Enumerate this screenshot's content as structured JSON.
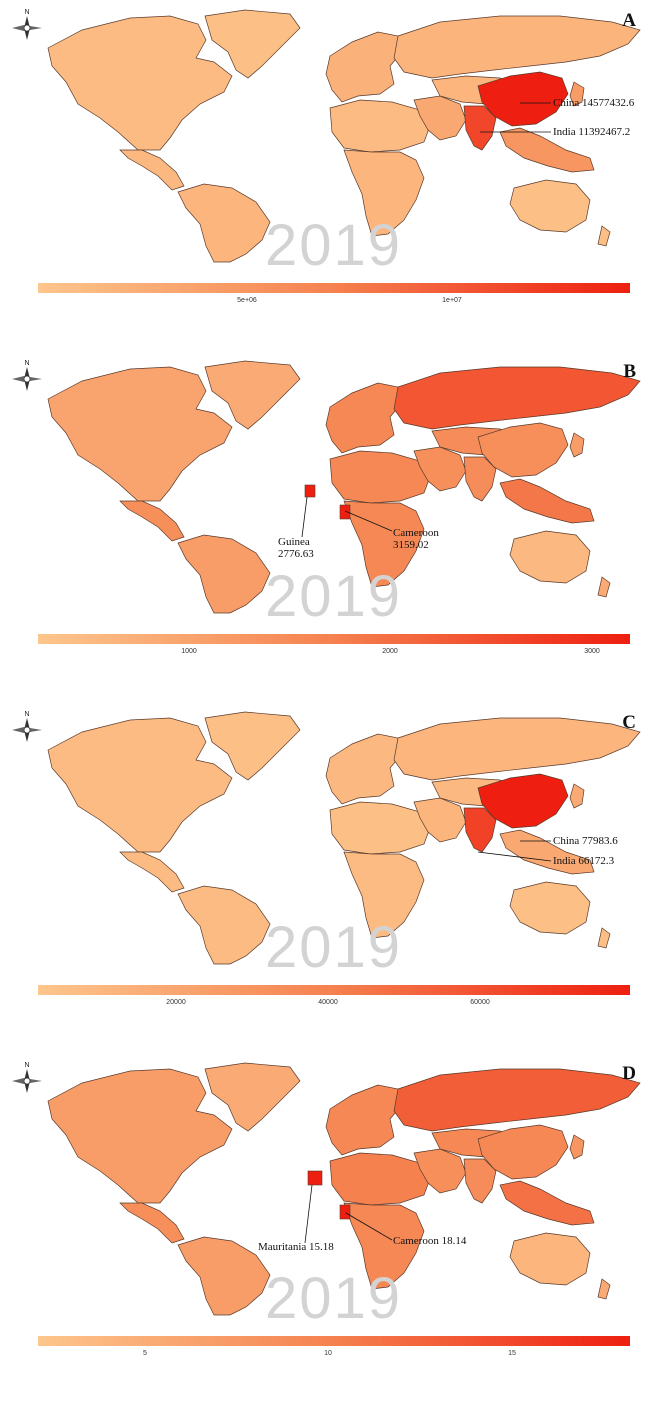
{
  "year_label": "2019",
  "colors": {
    "low": "#fdc68c",
    "mid": "#f5814f",
    "high": "#ee1f10",
    "border": "#5a3a2a"
  },
  "panels": [
    {
      "letter": "A",
      "ticks": [
        {
          "value": "5e+06",
          "pos": 0.354
        },
        {
          "value": "1e+07",
          "pos": 0.7
        }
      ],
      "annotations": [
        {
          "country": "China",
          "value": "14577432.6",
          "text": "China 14577432.6"
        },
        {
          "country": "India",
          "value": "11392467.2",
          "text": "India 11392467.2"
        }
      ],
      "region_levels": {
        "na": 0.08,
        "ca": 0.1,
        "sa": 0.12,
        "gl": 0.05,
        "eu": 0.15,
        "ru": 0.13,
        "naf": 0.08,
        "saf": 0.12,
        "me": 0.22,
        "ca_asia": 0.12,
        "china": 1.0,
        "india": 0.8,
        "sea": 0.35,
        "jp": 0.3,
        "au": 0.05,
        "nz": 0.05
      }
    },
    {
      "letter": "B",
      "ticks": [
        {
          "value": "1000",
          "pos": 0.255
        },
        {
          "value": "2000",
          "pos": 0.595
        },
        {
          "value": "3000",
          "pos": 0.935
        }
      ],
      "annotations": [
        {
          "country": "Guinea",
          "value": "2776.63",
          "text": "Guinea 2776.63"
        },
        {
          "country": "Cameroon",
          "value": "3159.02",
          "text": "Cameroon 3159.02"
        }
      ],
      "region_levels": {
        "na": 0.25,
        "ca": 0.4,
        "sa": 0.3,
        "gl": 0.2,
        "eu": 0.45,
        "ru": 0.72,
        "naf": 0.45,
        "saf": 0.45,
        "me": 0.4,
        "ca_asia": 0.42,
        "china": 0.4,
        "india": 0.42,
        "sea": 0.55,
        "jp": 0.3,
        "au": 0.1,
        "nz": 0.2
      }
    },
    {
      "letter": "C",
      "ticks": [
        {
          "value": "20000",
          "pos": 0.233
        },
        {
          "value": "40000",
          "pos": 0.49
        },
        {
          "value": "60000",
          "pos": 0.746
        }
      ],
      "annotations": [
        {
          "country": "China",
          "value": "77983.6",
          "text": "China 77983.6"
        },
        {
          "country": "India",
          "value": "66172.3",
          "text": "India 66172.3"
        }
      ],
      "region_levels": {
        "na": 0.08,
        "ca": 0.08,
        "sa": 0.08,
        "gl": 0.05,
        "eu": 0.1,
        "ru": 0.12,
        "naf": 0.05,
        "saf": 0.08,
        "me": 0.12,
        "ca_asia": 0.1,
        "china": 1.0,
        "india": 0.82,
        "sea": 0.22,
        "jp": 0.2,
        "au": 0.04,
        "nz": 0.04
      }
    },
    {
      "letter": "D",
      "ticks": [
        {
          "value": "5",
          "pos": 0.18
        },
        {
          "value": "10",
          "pos": 0.49
        },
        {
          "value": "15",
          "pos": 0.8
        }
      ],
      "annotations": [
        {
          "country": "Mauritania",
          "value": "15.18",
          "text": "Mauritania 15.18"
        },
        {
          "country": "Cameroon",
          "value": "18.14",
          "text": "Cameroon 18.14"
        }
      ],
      "region_levels": {
        "na": 0.3,
        "ca": 0.4,
        "sa": 0.3,
        "gl": 0.2,
        "eu": 0.45,
        "ru": 0.68,
        "naf": 0.5,
        "saf": 0.45,
        "me": 0.4,
        "ca_asia": 0.45,
        "china": 0.45,
        "india": 0.42,
        "sea": 0.58,
        "jp": 0.35,
        "au": 0.12,
        "nz": 0.2
      }
    }
  ]
}
